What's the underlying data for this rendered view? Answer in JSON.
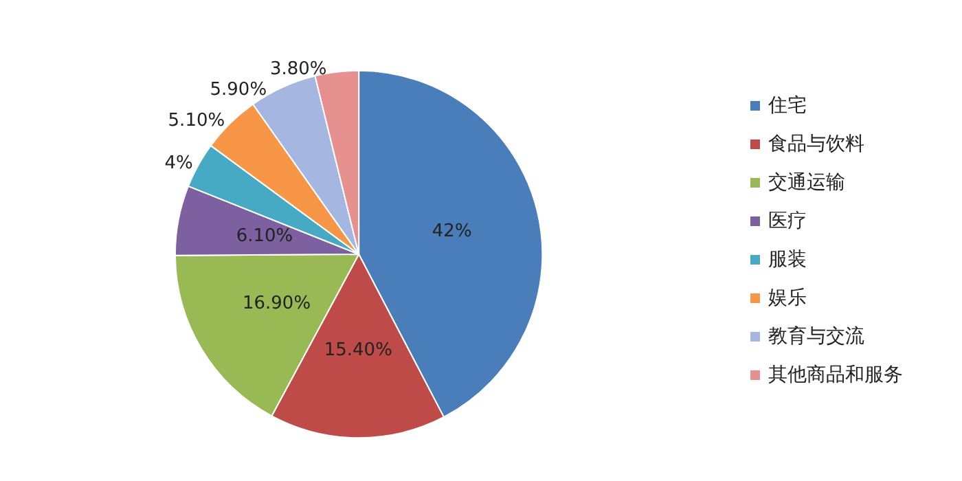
{
  "chart_data": {
    "type": "pie",
    "categories": [
      "住宅",
      "食品与饮料",
      "交通运输",
      "医疗",
      "服装",
      "娱乐",
      "教育与交流",
      "其他商品和服务"
    ],
    "values": [
      42,
      15.4,
      16.9,
      6.1,
      4,
      5.1,
      5.9,
      3.8
    ],
    "value_labels": [
      "42%",
      "15.40%",
      "16.90%",
      "6.10%",
      "4%",
      "5.10%",
      "5.90%",
      "3.80%"
    ],
    "colors": [
      "#4a7ebb",
      "#be4b48",
      "#98b954",
      "#7d60a0",
      "#46aac5",
      "#f79646",
      "#a5b6e0",
      "#e6908f"
    ],
    "legend": "right"
  }
}
